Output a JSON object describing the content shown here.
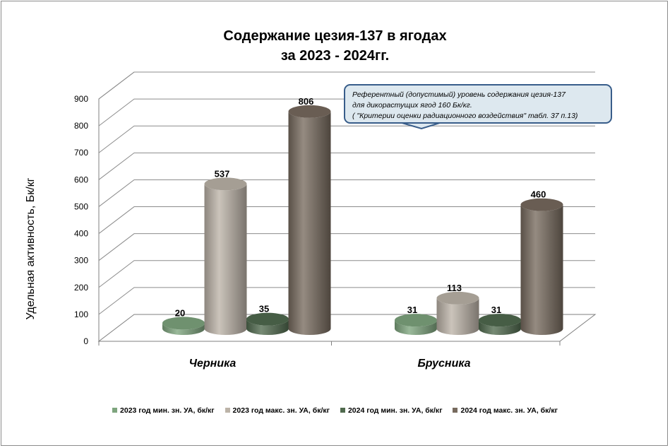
{
  "chart_data": {
    "type": "bar",
    "title": "Содержание цезия-137 в ягодах",
    "subtitle": "за 2023 - 2024гг.",
    "ylabel": "Удельная активность, Бк/кг",
    "xlabel": "",
    "ylim": [
      0,
      900
    ],
    "yticks": [
      "0",
      "100",
      "200",
      "300",
      "400",
      "500",
      "600",
      "700",
      "800",
      "900"
    ],
    "grid": true,
    "categories": [
      "Черника",
      "Брусника"
    ],
    "series": [
      {
        "name": "2023 год мин. зн. УА, бк/кг",
        "values": [
          20,
          31
        ],
        "labels": [
          "20",
          "31"
        ],
        "color": "#7ea57e"
      },
      {
        "name": "2023 год макс.  зн. УА, бк/кг",
        "values": [
          537,
          113
        ],
        "labels": [
          "537",
          "113"
        ],
        "color": "#bcb3a8"
      },
      {
        "name": "2024 год мин. зн. УА, бк/кг",
        "values": [
          35,
          31
        ],
        "labels": [
          "35",
          "31"
        ],
        "color": "#506a4e"
      },
      {
        "name": "2024 год макс.  зн. УА, бк/кг",
        "values": [
          806,
          460
        ],
        "labels": [
          "806",
          "460"
        ],
        "color": "#776a5e"
      }
    ],
    "legend_position": "bottom",
    "annotation": {
      "line1": "Референтный (допустимый) уровень содержания цезия-137",
      "line2": "для дикорастущих  ягод  160 Бк/кг.",
      "line3": "( \"Критерии оценки радиационного воздействия\"  табл. 37 п.13)"
    }
  }
}
